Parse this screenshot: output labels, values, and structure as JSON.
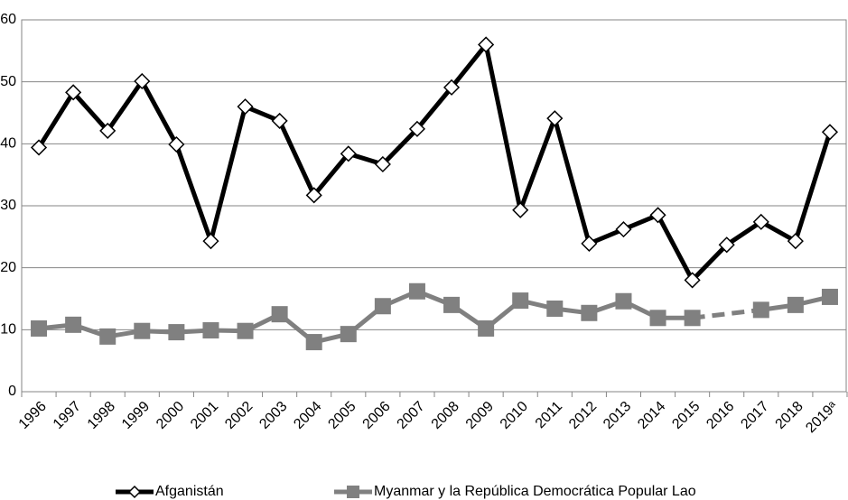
{
  "chart_data": {
    "type": "line",
    "categories": [
      "1996",
      "1997",
      "1998",
      "1999",
      "2000",
      "2001",
      "2002",
      "2003",
      "2004",
      "2005",
      "2006",
      "2007",
      "2008",
      "2009",
      "2010",
      "2011",
      "2012",
      "2013",
      "2014",
      "2015",
      "2016",
      "2017",
      "2018",
      "2019ᵃ"
    ],
    "series": [
      {
        "name": "Afganistán",
        "color": "#000000",
        "marker": "diamond",
        "values": [
          39.4,
          48.3,
          42.1,
          50.1,
          39.9,
          24.3,
          46.0,
          43.7,
          31.7,
          38.4,
          36.7,
          42.4,
          49.1,
          56.0,
          29.3,
          44.1,
          23.9,
          26.2,
          28.5,
          18.0,
          23.7,
          27.4,
          24.3,
          41.9
        ]
      },
      {
        "name": "Myanmar y la República Democrática Popular Lao",
        "color": "#808080",
        "marker": "square",
        "gap_style": "dashed",
        "values": [
          10.2,
          10.8,
          8.9,
          9.8,
          9.6,
          9.9,
          9.8,
          12.5,
          8.0,
          9.3,
          13.8,
          16.2,
          14.0,
          10.2,
          14.7,
          13.4,
          12.7,
          14.6,
          11.9,
          11.9,
          null,
          13.2,
          14.0,
          15.3
        ]
      }
    ],
    "ylim": [
      0,
      60
    ],
    "yticks": [
      0,
      10,
      20,
      30,
      40,
      50,
      60
    ],
    "grid": true,
    "legend": "bottom"
  }
}
